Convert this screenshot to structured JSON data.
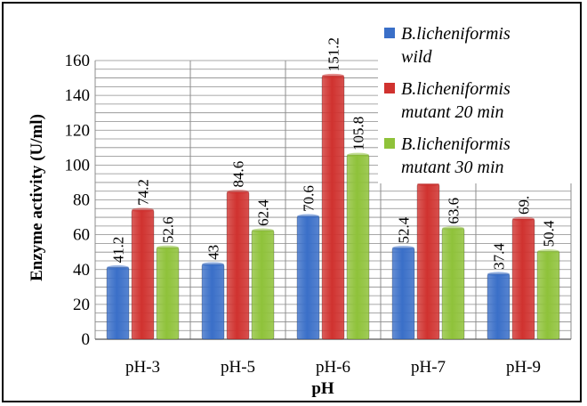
{
  "chart_data": {
    "type": "bar",
    "title": "",
    "xlabel": "pH",
    "ylabel": "Enzyme activity (U/ml)",
    "categories": [
      "pH-3",
      "pH-5",
      "pH-6",
      "pH-7",
      "pH-9"
    ],
    "series": [
      {
        "name": "B.licheniformis wild",
        "name_lines": [
          "B.licheniformis",
          "wild"
        ],
        "color": "#3a6fc8",
        "values": [
          41.2,
          43,
          70.6,
          52.4,
          37.4
        ],
        "labels": [
          "41.2",
          "43",
          "70.6",
          "52.4",
          "37.4"
        ]
      },
      {
        "name": "B.licheniformis mutant 20 min",
        "name_lines": [
          "B.licheniformis",
          "mutant 20 min"
        ],
        "color": "#d0322f",
        "values": [
          74.2,
          84.6,
          151.2,
          89,
          69
        ],
        "labels": [
          "74.2",
          "84.6",
          "151.2",
          "",
          "69."
        ]
      },
      {
        "name": "B.licheniformis mutant 30 min",
        "name_lines": [
          "B.licheniformis",
          "mutant 30 min"
        ],
        "color": "#8fc23a",
        "values": [
          52.6,
          62.4,
          105.8,
          63.6,
          50.4
        ],
        "labels": [
          "52.6",
          "62.4",
          "105.8",
          "63.6",
          "50.4"
        ]
      }
    ],
    "ylim": [
      0,
      160
    ],
    "yticks": [
      0,
      20,
      40,
      60,
      80,
      100,
      120,
      140,
      160
    ],
    "ytick_labels": [
      "0",
      "20",
      "40",
      "60",
      "80",
      "100",
      "120",
      "140",
      "160"
    ],
    "grid": true,
    "legend_position": "top-right"
  }
}
